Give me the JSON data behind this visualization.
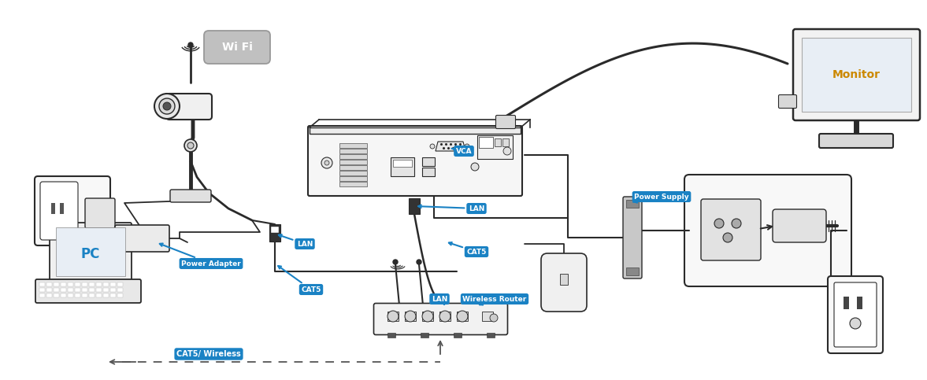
{
  "bg": "#ffffff",
  "lc": "#2a2a2a",
  "blue": "#1a82c4",
  "gray_light": "#f0f0f0",
  "gray_med": "#d8d8d8",
  "gray_dark": "#888888",
  "screen_color": "#e8eef5",
  "orange": "#cc8800",
  "labels": {
    "wifi": "Wi Fi",
    "vca": "VCA",
    "lan_nvr": "LAN",
    "lan_cam": "LAN",
    "lan_router": "LAN",
    "cat5_nvr": "CAT5",
    "cat5_cam": "CAT5",
    "cat5_wireless": "CAT5/ Wireless",
    "power_adapter": "Power Adapter",
    "power_supply": "Power Supply",
    "wireless_router": "Wireless Router",
    "pc": "PC",
    "monitor": "Monitor"
  }
}
